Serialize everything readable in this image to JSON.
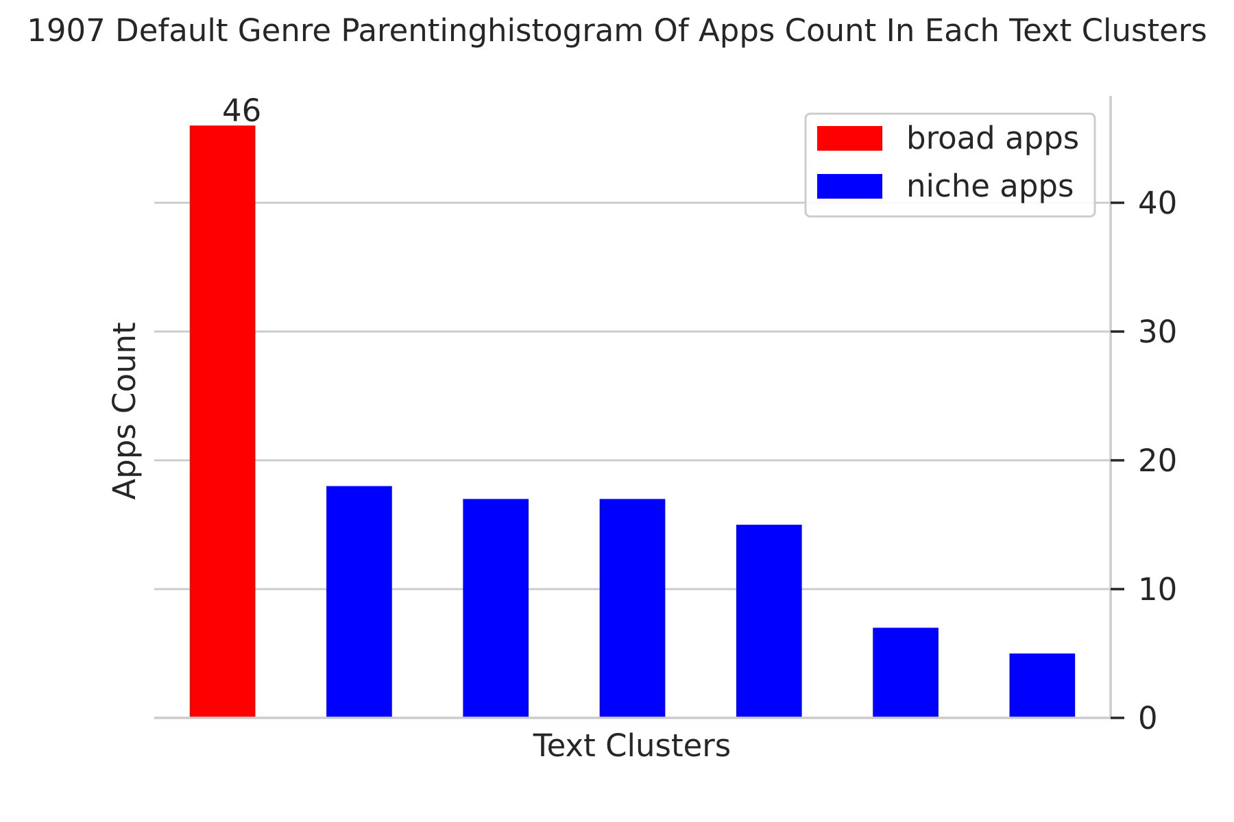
{
  "chart_data": {
    "type": "bar",
    "title": "1907 Default Genre Parentinghistogram Of Apps Count In Each Text Clusters",
    "xlabel": "Text Clusters",
    "ylabel": "Apps Count",
    "ylim": [
      0,
      48.3
    ],
    "yticks": [
      0,
      10,
      20,
      30,
      40
    ],
    "y_axis_side": "right",
    "grid": "horizontal",
    "legend_position": "top-right",
    "series": [
      {
        "name": "broad apps",
        "color": "#ff0000",
        "values": [
          46,
          0,
          0,
          0,
          0,
          0,
          0
        ]
      },
      {
        "name": "niche apps",
        "color": "#0000ff",
        "values": [
          0,
          18,
          17,
          17,
          15,
          7,
          5
        ]
      }
    ],
    "bar_labels": [
      "46",
      "",
      "",
      "",
      "",
      "",
      ""
    ]
  }
}
